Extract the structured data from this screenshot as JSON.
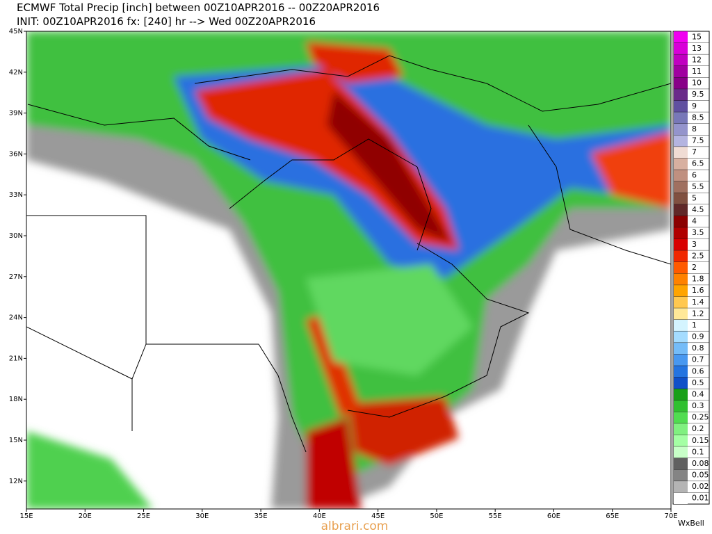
{
  "header": {
    "title": "ECMWF Total Precip [inch] between 00Z10APR2016 -- 00Z20APR2016",
    "subtitle": "INIT: 00Z10APR2016 fx: [240] hr --> Wed 00Z20APR2016"
  },
  "map": {
    "lat_labels": [
      "45N",
      "42N",
      "39N",
      "36N",
      "33N",
      "30N",
      "27N",
      "24N",
      "21N",
      "18N",
      "15N",
      "12N"
    ],
    "lon_labels": [
      "15E",
      "20E",
      "25E",
      "30E",
      "35E",
      "40E",
      "45E",
      "50E",
      "55E",
      "60E",
      "65E",
      "70E"
    ]
  },
  "legend": {
    "levels": [
      {
        "label": "15",
        "color": "#f000f0"
      },
      {
        "label": "13",
        "color": "#d800d8"
      },
      {
        "label": "12",
        "color": "#c000c0"
      },
      {
        "label": "11",
        "color": "#a000a0"
      },
      {
        "label": "10",
        "color": "#880088"
      },
      {
        "label": "9.5",
        "color": "#6a2a8a"
      },
      {
        "label": "9",
        "color": "#6050a0"
      },
      {
        "label": "8.5",
        "color": "#7878b8"
      },
      {
        "label": "8",
        "color": "#9494cc"
      },
      {
        "label": "7.5",
        "color": "#b4b4e0"
      },
      {
        "label": "7",
        "color": "#f0dcd4"
      },
      {
        "label": "6.5",
        "color": "#d8b0a0"
      },
      {
        "label": "6",
        "color": "#c09080"
      },
      {
        "label": "5.5",
        "color": "#a07060"
      },
      {
        "label": "5",
        "color": "#805040"
      },
      {
        "label": "4.5",
        "color": "#602828"
      },
      {
        "label": "4",
        "color": "#8b0000"
      },
      {
        "label": "3.5",
        "color": "#b00000"
      },
      {
        "label": "3",
        "color": "#d80000"
      },
      {
        "label": "2.5",
        "color": "#f02800"
      },
      {
        "label": "2",
        "color": "#ff5a00"
      },
      {
        "label": "1.8",
        "color": "#ff8200"
      },
      {
        "label": "1.6",
        "color": "#ffa400"
      },
      {
        "label": "1.4",
        "color": "#ffc850"
      },
      {
        "label": "1.2",
        "color": "#ffe898"
      },
      {
        "label": "1",
        "color": "#d4f4ff"
      },
      {
        "label": "0.9",
        "color": "#a4dcff"
      },
      {
        "label": "0.8",
        "color": "#74bcf8"
      },
      {
        "label": "0.7",
        "color": "#4898f0"
      },
      {
        "label": "0.6",
        "color": "#2474e0"
      },
      {
        "label": "0.5",
        "color": "#1050c8"
      },
      {
        "label": "0.4",
        "color": "#18a018"
      },
      {
        "label": "0.3",
        "color": "#30c030"
      },
      {
        "label": "0.25",
        "color": "#50dc50"
      },
      {
        "label": "0.2",
        "color": "#80f080"
      },
      {
        "label": "0.15",
        "color": "#a4ffa4"
      },
      {
        "label": "0.1",
        "color": "#c8ffc8"
      },
      {
        "label": "0.08",
        "color": "#606060"
      },
      {
        "label": "0.05",
        "color": "#848484"
      },
      {
        "label": "0.02",
        "color": "#b4b4b4"
      },
      {
        "label": "0.01",
        "color": "#ffffff"
      }
    ]
  },
  "footer": {
    "watermark": "albrari.com",
    "brand": "WxBell"
  }
}
